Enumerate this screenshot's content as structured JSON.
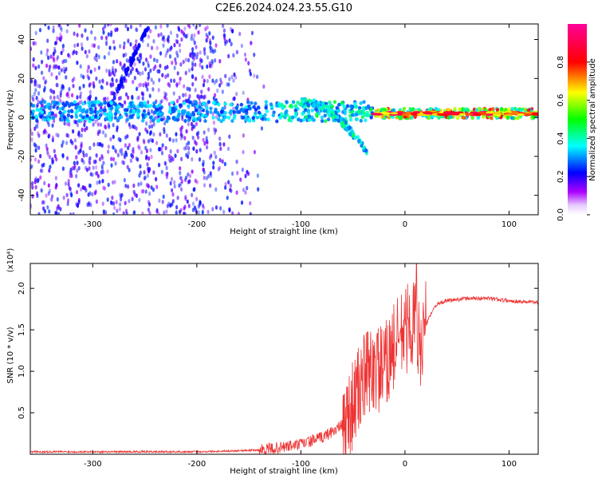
{
  "title": "C2E6.2024.024.23.55.G10",
  "chart_data": [
    {
      "type": "heatmap",
      "ylabel": "Frequency (Hz)",
      "xlabel": "Height of straight line (km)",
      "xlim": [
        -360,
        128
      ],
      "ylim": [
        -50,
        48
      ],
      "xticks": [
        -300,
        -200,
        -100,
        0,
        100
      ],
      "yticks": [
        -40,
        -20,
        0,
        20,
        40
      ],
      "colorbar": {
        "label": "Normalized spectral amplitude",
        "range": [
          0.0,
          1.0
        ],
        "ticks": [
          0.0,
          0.2,
          0.4,
          0.6,
          0.8
        ],
        "colors": [
          "#ffffff",
          "#ad00ff",
          "#0000ff",
          "#00ffff",
          "#00ff00",
          "#ffff00",
          "#ff0000",
          "#ff0099"
        ]
      },
      "features": [
        {
          "name": "carrier-band",
          "freq_hz": 3,
          "x_range": [
            -360,
            128
          ]
        },
        {
          "name": "diagonal-streak",
          "x_range": [
            -285,
            -245
          ],
          "freq_range": [
            5,
            48
          ]
        },
        {
          "name": "descending-branch",
          "x_range": [
            -100,
            -35
          ],
          "freq_range": [
            10,
            -22
          ]
        }
      ]
    },
    {
      "type": "line",
      "ylabel": "SNR (10 * v/v)",
      "y_multiplier": "(x10⁴)",
      "xlabel": "Height of straight line (km)",
      "xlim": [
        -360,
        128
      ],
      "ylim": [
        0,
        2.3
      ],
      "xticks": [
        -300,
        -200,
        -100,
        0,
        100
      ],
      "yticks": [
        0.5,
        1.0,
        1.5,
        2.0
      ],
      "ytick_labels": [
        "0.5",
        "1.0",
        "1.5",
        "2.0"
      ],
      "series": [
        {
          "name": "SNR",
          "color": "#ee3333",
          "points": [
            [
              -360,
              0.03
            ],
            [
              -300,
              0.03
            ],
            [
              -200,
              0.03
            ],
            [
              -140,
              0.05
            ],
            [
              -120,
              0.08
            ],
            [
              -100,
              0.12
            ],
            [
              -80,
              0.2
            ],
            [
              -60,
              0.35
            ],
            [
              -50,
              0.6
            ],
            [
              -40,
              0.9
            ],
            [
              -30,
              1.05
            ],
            [
              -20,
              1.0
            ],
            [
              -15,
              1.2
            ],
            [
              -10,
              1.3
            ],
            [
              -5,
              1.4
            ],
            [
              0,
              1.5
            ],
            [
              5,
              1.55
            ],
            [
              10,
              1.6
            ],
            [
              13,
              1.3
            ],
            [
              20,
              1.55
            ],
            [
              25,
              1.7
            ],
            [
              30,
              1.8
            ],
            [
              40,
              1.85
            ],
            [
              60,
              1.88
            ],
            [
              80,
              1.88
            ],
            [
              100,
              1.85
            ],
            [
              128,
              1.83
            ]
          ],
          "peak": [
            11,
            2.3
          ]
        }
      ]
    }
  ]
}
